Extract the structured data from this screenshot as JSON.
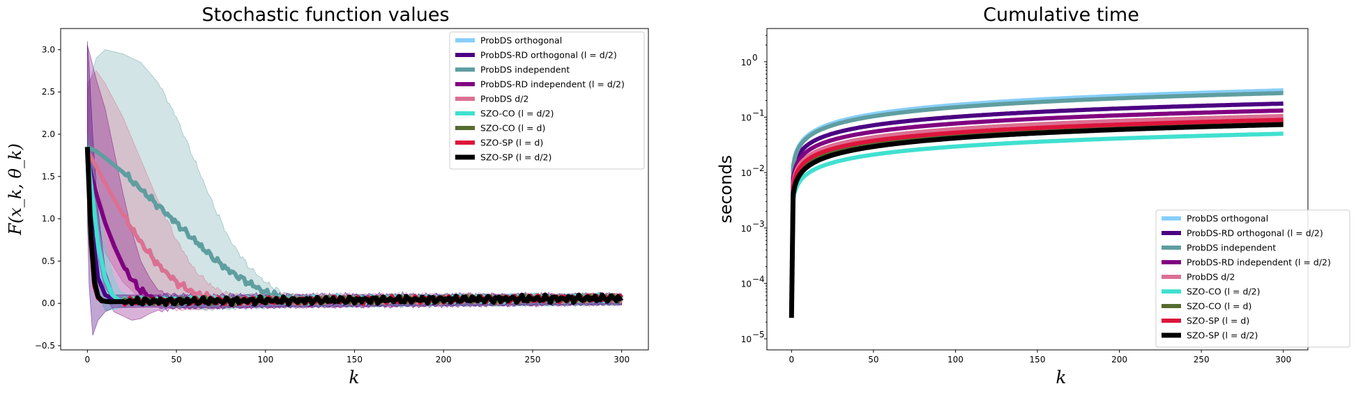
{
  "chart_data": [
    {
      "type": "line",
      "title": "Stochastic function values",
      "xlabel": "k",
      "ylabel": "F(x_k, θ_k)",
      "xlim": [
        -15,
        315
      ],
      "ylim": [
        -0.55,
        3.25
      ],
      "xticks": [
        0,
        50,
        100,
        150,
        200,
        250,
        300
      ],
      "yticks": [
        -0.5,
        0.0,
        0.5,
        1.0,
        1.5,
        2.0,
        2.5,
        3.0
      ],
      "ytick_labels": [
        "−0.5",
        "0.0",
        "0.5",
        "1.0",
        "1.5",
        "2.0",
        "2.5",
        "3.0"
      ],
      "legend_position": "top-right",
      "series": [
        {
          "name": "ProbDS orthogonal",
          "color": "#87CEFA",
          "width": 6,
          "x": [
            0,
            2,
            5,
            8,
            12,
            16,
            20,
            30,
            300
          ],
          "y": [
            1.75,
            1.2,
            0.5,
            0.2,
            0.06,
            0.03,
            0.02,
            0.02,
            0.06
          ]
        },
        {
          "name": "ProbDS-RD orthogonal (l = d/2)",
          "color": "#4B0082",
          "width": 6,
          "x": [
            0,
            3,
            6,
            10,
            15,
            20,
            300
          ],
          "y": [
            1.75,
            0.8,
            0.3,
            0.1,
            0.04,
            0.02,
            0.06
          ]
        },
        {
          "name": "ProbDS independent",
          "color": "#5F9EA0",
          "width": 6,
          "x": [
            0,
            5,
            10,
            20,
            30,
            40,
            50,
            60,
            70,
            80,
            90,
            100,
            110,
            120,
            300
          ],
          "y": [
            1.85,
            1.8,
            1.72,
            1.55,
            1.35,
            1.15,
            0.95,
            0.75,
            0.55,
            0.38,
            0.25,
            0.13,
            0.07,
            0.04,
            0.06
          ]
        },
        {
          "name": "ProbDS-RD independent (l = d/2)",
          "color": "#800080",
          "width": 6,
          "x": [
            0,
            5,
            10,
            15,
            20,
            25,
            30,
            35,
            40,
            50,
            300
          ],
          "y": [
            1.7,
            1.3,
            0.95,
            0.68,
            0.45,
            0.28,
            0.15,
            0.08,
            0.04,
            0.02,
            0.06
          ]
        },
        {
          "name": "ProbDS d/2",
          "color": "#DB7093",
          "width": 6,
          "x": [
            0,
            5,
            10,
            20,
            30,
            40,
            50,
            60,
            70,
            80,
            300
          ],
          "y": [
            1.8,
            1.62,
            1.42,
            1.05,
            0.72,
            0.45,
            0.25,
            0.12,
            0.06,
            0.03,
            0.06
          ]
        },
        {
          "name": "SZO-CO (l = d/2)",
          "color": "#40E0D0",
          "width": 6,
          "x": [
            0,
            3,
            6,
            10,
            14,
            18,
            300
          ],
          "y": [
            1.75,
            1.25,
            0.7,
            0.3,
            0.1,
            0.03,
            0.06
          ]
        },
        {
          "name": "SZO-CO (l = d)",
          "color": "#556B2F",
          "width": 6,
          "x": [
            0,
            2,
            4,
            6,
            10,
            300
          ],
          "y": [
            1.8,
            0.9,
            0.3,
            0.08,
            0.02,
            0.06
          ]
        },
        {
          "name": "SZO-SP (l = d)",
          "color": "#DC143C",
          "width": 6,
          "x": [
            0,
            2,
            4,
            6,
            10,
            300
          ],
          "y": [
            1.8,
            0.7,
            0.2,
            0.06,
            0.02,
            0.06
          ]
        },
        {
          "name": "SZO-SP (l = d/2)",
          "color": "#000000",
          "width": 7,
          "x": [
            0,
            2,
            4,
            6,
            8,
            12,
            300
          ],
          "y": [
            1.85,
            0.8,
            0.25,
            0.08,
            0.03,
            0.02,
            0.06
          ]
        }
      ],
      "bands": [
        {
          "color": "#5F9EA0",
          "opacity": 0.28,
          "x": [
            0,
            5,
            10,
            20,
            30,
            40,
            50,
            60,
            70,
            80,
            90,
            100,
            110,
            120,
            300
          ],
          "upper": [
            2.5,
            2.9,
            3.0,
            2.95,
            2.85,
            2.6,
            2.2,
            1.7,
            1.2,
            0.75,
            0.45,
            0.25,
            0.12,
            0.08,
            0.1
          ],
          "lower": [
            1.7,
            1.5,
            1.0,
            0.5,
            0.2,
            0.05,
            -0.02,
            -0.05,
            -0.06,
            -0.05,
            -0.04,
            -0.04,
            -0.03,
            -0.02,
            0.0
          ]
        },
        {
          "color": "#DB7093",
          "opacity": 0.3,
          "x": [
            0,
            5,
            10,
            20,
            30,
            40,
            50,
            60,
            70,
            80,
            300
          ],
          "upper": [
            2.6,
            2.75,
            2.6,
            2.2,
            1.7,
            1.2,
            0.75,
            0.4,
            0.2,
            0.1,
            0.1
          ],
          "lower": [
            1.6,
            1.0,
            0.6,
            0.25,
            0.05,
            -0.02,
            -0.06,
            -0.06,
            -0.05,
            -0.03,
            0.0
          ]
        },
        {
          "color": "#800080",
          "opacity": 0.3,
          "x": [
            0,
            2,
            5,
            10,
            15,
            20,
            25,
            30,
            35,
            40,
            50,
            300
          ],
          "upper": [
            3.05,
            2.9,
            2.65,
            2.3,
            1.8,
            1.3,
            0.85,
            0.5,
            0.3,
            0.15,
            0.08,
            0.1
          ],
          "lower": [
            1.9,
            1.2,
            0.5,
            0.1,
            -0.1,
            -0.15,
            -0.2,
            -0.18,
            -0.12,
            -0.08,
            -0.04,
            0.0
          ]
        },
        {
          "color": "#40E0D0",
          "opacity": 0.3,
          "x": [
            0,
            3,
            6,
            10,
            14,
            18,
            24,
            300
          ],
          "upper": [
            2.0,
            1.7,
            1.2,
            0.7,
            0.35,
            0.15,
            0.08,
            0.1
          ],
          "lower": [
            1.5,
            0.6,
            0.1,
            -0.08,
            -0.08,
            -0.05,
            -0.03,
            0.0
          ]
        },
        {
          "color": "#4B0082",
          "opacity": 0.35,
          "x": [
            0,
            1,
            3,
            6,
            10,
            15,
            300
          ],
          "upper": [
            3.1,
            2.8,
            2.0,
            1.1,
            0.4,
            0.1,
            0.1
          ],
          "lower": [
            1.0,
            0.2,
            -0.38,
            -0.2,
            -0.1,
            -0.05,
            0.0
          ]
        }
      ]
    },
    {
      "type": "line",
      "title": "Cumulative time",
      "xlabel": "k",
      "ylabel": "seconds",
      "yscale": "log",
      "xlim": [
        -15,
        315
      ],
      "ylim_log10": [
        -5.2,
        0.6
      ],
      "xticks": [
        0,
        50,
        100,
        150,
        200,
        250,
        300
      ],
      "yticks_exp": [
        -5,
        -4,
        -3,
        -2,
        -1,
        0
      ],
      "legend_position": "lower-right",
      "series": [
        {
          "name": "ProbDS orthogonal",
          "color": "#87CEFA",
          "width": 6,
          "a": -1.88,
          "b": 0.438
        },
        {
          "name": "ProbDS-RD orthogonal (l = d/2)",
          "color": "#4B0082",
          "width": 6,
          "a": -2.0,
          "b": 0.4
        },
        {
          "name": "ProbDS independent",
          "color": "#5F9EA0",
          "width": 6,
          "a": -1.9,
          "b": 0.429
        },
        {
          "name": "ProbDS-RD independent (l = d/2)",
          "color": "#800080",
          "width": 6,
          "a": -2.1,
          "b": 0.392
        },
        {
          "name": "ProbDS d/2",
          "color": "#DB7093",
          "width": 6,
          "a": -2.2,
          "b": 0.392
        },
        {
          "name": "SZO-CO (l = d/2)",
          "color": "#40E0D0",
          "width": 6,
          "a": -2.5,
          "b": 0.386
        },
        {
          "name": "SZO-CO (l = d)",
          "color": "#556B2F",
          "width": 6,
          "a": -2.35,
          "b": 0.409
        },
        {
          "name": "SZO-SP (l = d)",
          "color": "#DC143C",
          "width": 6,
          "a": -2.25,
          "b": 0.386
        },
        {
          "name": "SZO-SP (l = d/2)",
          "color": "#000000",
          "width": 7,
          "a": -2.4,
          "b": 0.407
        }
      ]
    }
  ]
}
